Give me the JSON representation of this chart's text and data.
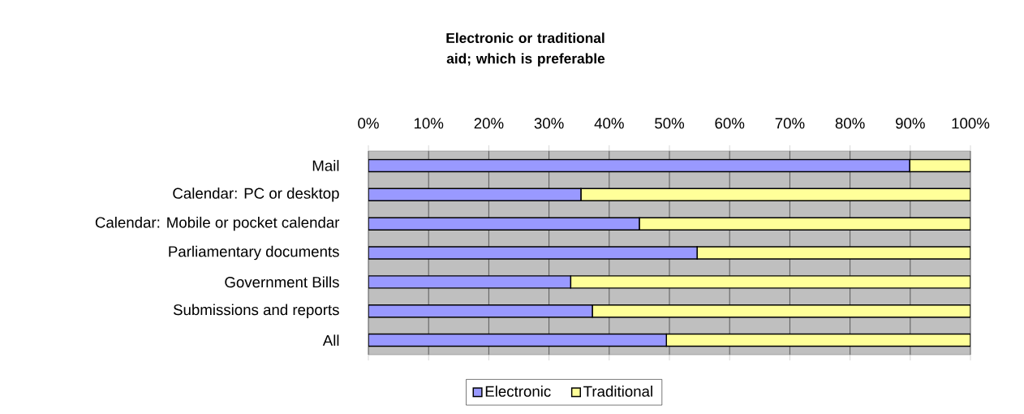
{
  "chart_data": {
    "type": "bar",
    "orientation": "horizontal",
    "stacked": true,
    "title": "Electronic or traditional aid; which is preferable",
    "categories": [
      "Mail",
      "Calendar: PC or desktop",
      "Calendar: Mobile or pocket calendar",
      "Parliamentary documents",
      "Government Bills",
      "Submissions and reports",
      "All"
    ],
    "series": [
      {
        "name": "Electronic",
        "color": "#9999ff",
        "values": [
          89.9,
          35.3,
          45.0,
          54.6,
          33.6,
          37.2,
          49.5
        ]
      },
      {
        "name": "Traditional",
        "color": "#ffff99",
        "values": [
          10.1,
          64.7,
          55.0,
          45.4,
          66.4,
          62.8,
          50.5
        ]
      }
    ],
    "xlim": [
      0,
      100
    ],
    "xticks": [
      {
        "value": 0,
        "label": "0%"
      },
      {
        "value": 10,
        "label": "10%"
      },
      {
        "value": 20,
        "label": "20%"
      },
      {
        "value": 30,
        "label": "30%"
      },
      {
        "value": 40,
        "label": "40%"
      },
      {
        "value": 50,
        "label": "50%"
      },
      {
        "value": 60,
        "label": "60%"
      },
      {
        "value": 70,
        "label": "70%"
      },
      {
        "value": 80,
        "label": "80%"
      },
      {
        "value": 90,
        "label": "90%"
      },
      {
        "value": 100,
        "label": "100%"
      }
    ],
    "grid": "x",
    "legend": "bottom"
  }
}
